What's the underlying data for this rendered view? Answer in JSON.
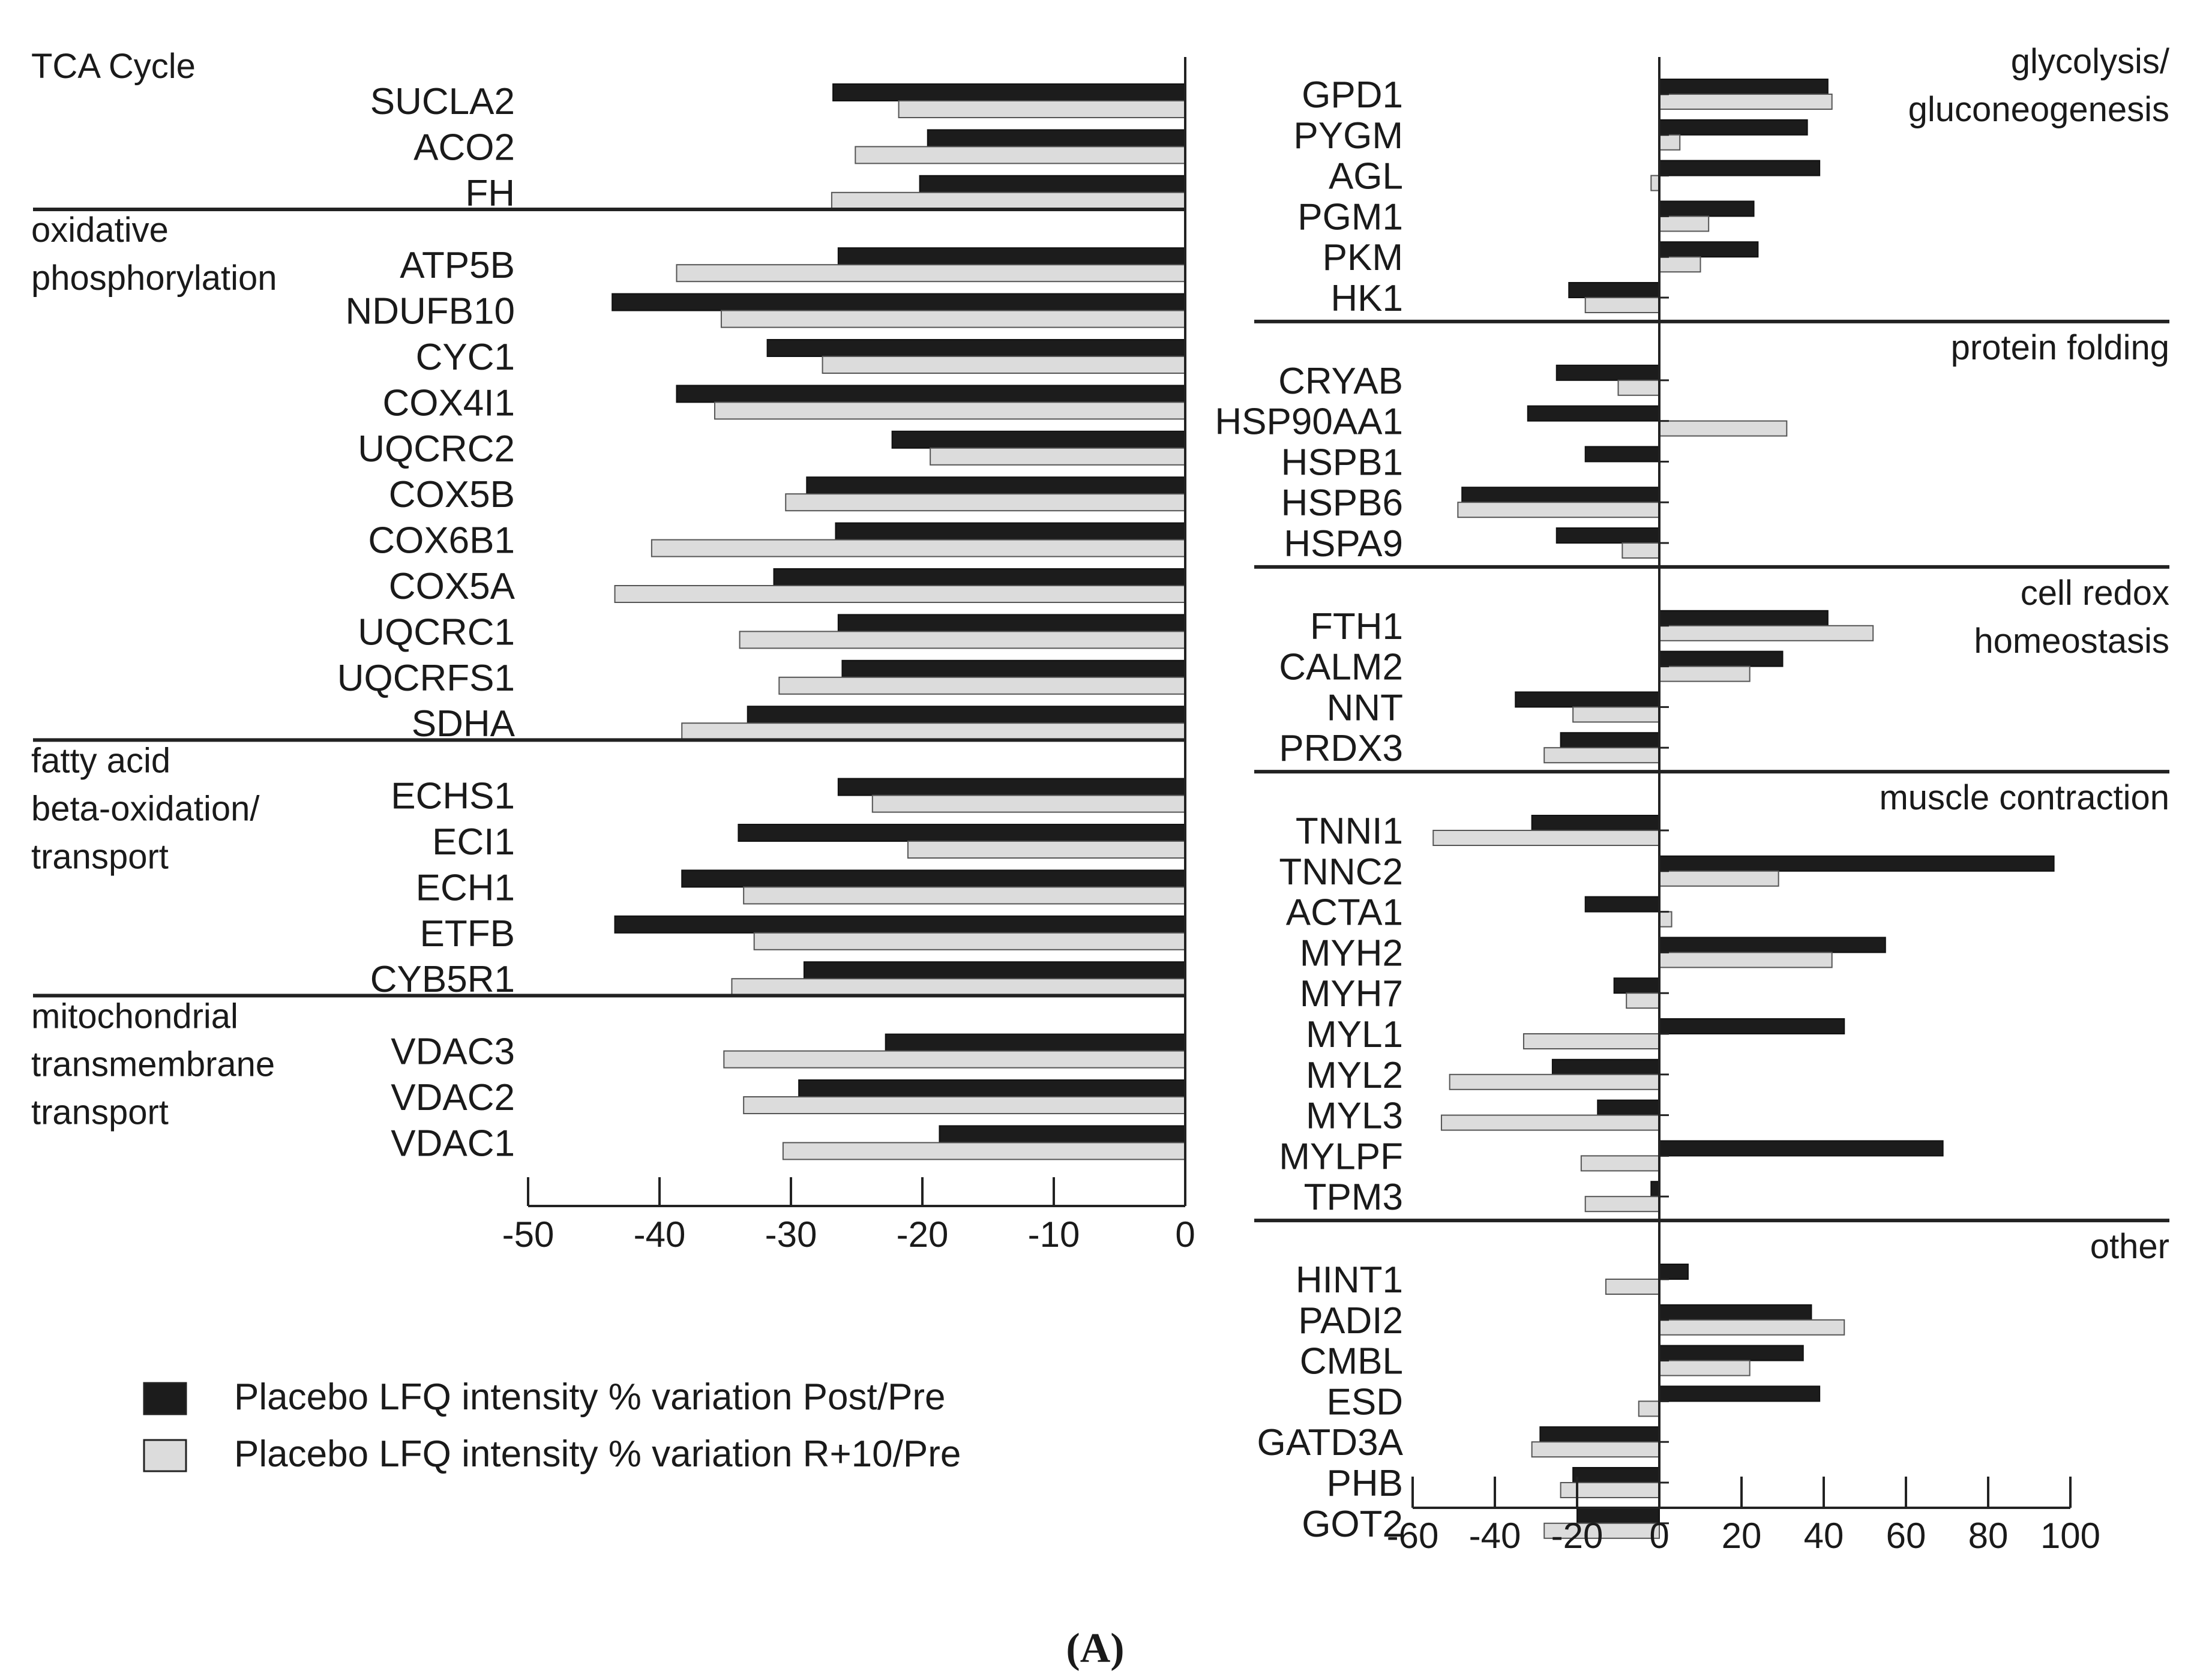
{
  "caption": "(A)",
  "legend": [
    {
      "label": "Placebo LFQ intensity % variation Post/Pre",
      "color": "#1c1c1c"
    },
    {
      "label": "Placebo LFQ intensity % variation R+10/Pre",
      "color": "#dcdcdc"
    }
  ],
  "chart_data": [
    {
      "type": "bar",
      "orientation": "horizontal",
      "series": [
        "Placebo LFQ intensity % variation Post/Pre",
        "Placebo LFQ intensity % variation R+10/Pre"
      ],
      "xlim": [
        -50,
        0
      ],
      "xticks": [
        "-50",
        "-40",
        "-30",
        "-20",
        "-10",
        "0"
      ],
      "groups": [
        {
          "lines": [
            "TCA Cycle"
          ],
          "genes": [
            {
              "name": "SUCLA2",
              "post": -26.8,
              "r10": -21.8
            },
            {
              "name": "ACO2",
              "post": -19.6,
              "r10": -25.1
            },
            {
              "name": "FH",
              "post": -20.2,
              "r10": -26.9
            }
          ]
        },
        {
          "lines": [
            "oxidative",
            "phosphorylation"
          ],
          "genes": [
            {
              "name": "ATP5B",
              "post": -26.4,
              "r10": -38.7
            },
            {
              "name": "NDUFB10",
              "post": -43.6,
              "r10": -35.3
            },
            {
              "name": "CYC1",
              "post": -31.8,
              "r10": -27.6
            },
            {
              "name": "COX4I1",
              "post": -38.7,
              "r10": -35.8
            },
            {
              "name": "UQCRC2",
              "post": -22.3,
              "r10": -19.4
            },
            {
              "name": "COX5B",
              "post": -28.8,
              "r10": -30.4
            },
            {
              "name": "COX6B1",
              "post": -26.6,
              "r10": -40.6
            },
            {
              "name": "COX5A",
              "post": -31.3,
              "r10": -43.4
            },
            {
              "name": "UQCRC1",
              "post": -26.4,
              "r10": -33.9
            },
            {
              "name": "UQCRFS1",
              "post": -26.1,
              "r10": -30.9
            },
            {
              "name": "SDHA",
              "post": -33.3,
              "r10": -38.3
            }
          ]
        },
        {
          "lines": [
            "fatty acid",
            "beta-oxidation/",
            "transport"
          ],
          "genes": [
            {
              "name": "ECHS1",
              "post": -26.4,
              "r10": -23.8
            },
            {
              "name": "ECI1",
              "post": -34.0,
              "r10": -21.1
            },
            {
              "name": "ECH1",
              "post": -38.3,
              "r10": -33.6
            },
            {
              "name": "ETFB",
              "post": -43.4,
              "r10": -32.8
            },
            {
              "name": "CYB5R1",
              "post": -29.0,
              "r10": -34.5
            }
          ]
        },
        {
          "lines": [
            "mitochondrial",
            "transmembrane",
            "transport"
          ],
          "genes": [
            {
              "name": "VDAC3",
              "post": -22.8,
              "r10": -35.1
            },
            {
              "name": "VDAC2",
              "post": -29.4,
              "r10": -33.6
            },
            {
              "name": "VDAC1",
              "post": -18.7,
              "r10": -30.6
            }
          ]
        }
      ]
    },
    {
      "type": "bar",
      "orientation": "horizontal",
      "series": [
        "Placebo LFQ intensity % variation Post/Pre",
        "Placebo LFQ intensity % variation R+10/Pre"
      ],
      "xlim": [
        -60,
        100
      ],
      "xticks": [
        "-60",
        "-40",
        "-20",
        "0",
        "20",
        "40",
        "60",
        "80",
        "100"
      ],
      "groups": [
        {
          "lines": [
            "glycolysis/",
            "gluconeogenesis"
          ],
          "genes": [
            {
              "name": "GPD1",
              "post": 41,
              "r10": 42
            },
            {
              "name": "PYGM",
              "post": 36,
              "r10": 5
            },
            {
              "name": "AGL",
              "post": 39,
              "r10": -2
            },
            {
              "name": "PGM1",
              "post": 23,
              "r10": 12
            },
            {
              "name": "PKM",
              "post": 24,
              "r10": 10
            },
            {
              "name": "HK1",
              "post": -22,
              "r10": -18
            }
          ]
        },
        {
          "lines": [
            "protein folding"
          ],
          "genes": [
            {
              "name": "CRYAB",
              "post": -25,
              "r10": -10
            },
            {
              "name": "HSP90AA1",
              "post": -32,
              "r10": 31
            },
            {
              "name": "HSPB1",
              "post": -18,
              "r10": 0
            },
            {
              "name": "HSPB6",
              "post": -48,
              "r10": -49
            },
            {
              "name": "HSPA9",
              "post": -25,
              "r10": -9
            }
          ]
        },
        {
          "lines": [
            "cell redox",
            "homeostasis"
          ],
          "genes": [
            {
              "name": "FTH1",
              "post": 41,
              "r10": 52
            },
            {
              "name": "CALM2",
              "post": 30,
              "r10": 22
            },
            {
              "name": "NNT",
              "post": -35,
              "r10": -21
            },
            {
              "name": "PRDX3",
              "post": -24,
              "r10": -28
            }
          ]
        },
        {
          "lines": [
            "muscle contraction"
          ],
          "genes": [
            {
              "name": "TNNI1",
              "post": -31,
              "r10": -55
            },
            {
              "name": "TNNC2",
              "post": 96,
              "r10": 29
            },
            {
              "name": "ACTA1",
              "post": -18,
              "r10": 3
            },
            {
              "name": "MYH2",
              "post": 55,
              "r10": 42
            },
            {
              "name": "MYH7",
              "post": -11,
              "r10": -8
            },
            {
              "name": "MYL1",
              "post": 45,
              "r10": -33
            },
            {
              "name": "MYL2",
              "post": -26,
              "r10": -51
            },
            {
              "name": "MYL3",
              "post": -15,
              "r10": -53
            },
            {
              "name": "MYLPF",
              "post": 69,
              "r10": -19
            },
            {
              "name": "TPM3",
              "post": -2,
              "r10": -18
            }
          ]
        },
        {
          "lines": [
            "other"
          ],
          "genes": [
            {
              "name": "HINT1",
              "post": 7,
              "r10": -13
            },
            {
              "name": "PADI2",
              "post": 37,
              "r10": 45
            },
            {
              "name": "CMBL",
              "post": 35,
              "r10": 22
            },
            {
              "name": "ESD",
              "post": 39,
              "r10": -5
            },
            {
              "name": "GATD3A",
              "post": -29,
              "r10": -31
            },
            {
              "name": "PHB",
              "post": -21,
              "r10": -24
            },
            {
              "name": "GOT2",
              "post": -20,
              "r10": -28
            }
          ]
        }
      ]
    }
  ]
}
